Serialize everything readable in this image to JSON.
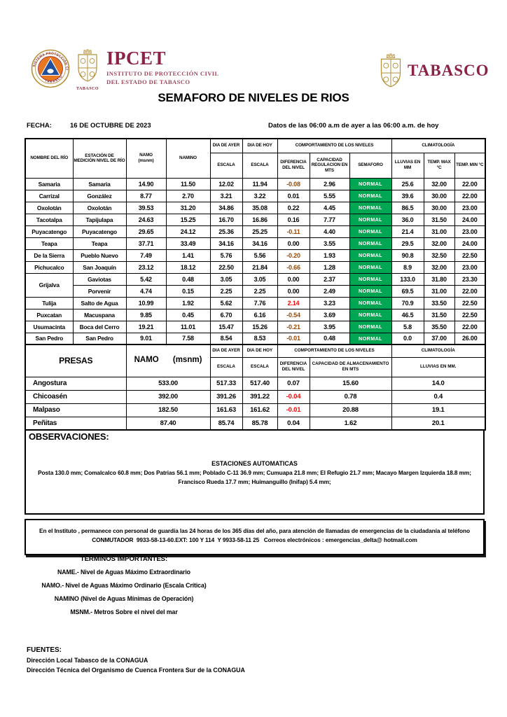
{
  "colors": {
    "semaforo_green": "#00A651",
    "negative_brown": "#974806",
    "alert_red": "#FF0000",
    "brand_maroon": "#8B2346",
    "crest_gold": "#B5913B",
    "emblem_orange": "#E87722",
    "emblem_blue": "#1F4E9C"
  },
  "header": {
    "seal_ring_top": "SISTEMA PROTECCIÓN CIVIL",
    "seal_ring_bottom": "TABASCO",
    "crest_label": "TABASCO",
    "ipcet_acronym": "IPCET",
    "ipcet_line1": "INSTITUTO DE PROTECCIÓN CIVIL",
    "ipcet_line2": "DEL ESTADO DE TABASCO",
    "tabasco_wordmark": "TABASCO",
    "title": "SEMAFORO DE NIVELES DE RIOS",
    "fecha_label": "FECHA:",
    "fecha_value": "16 DE OCTUBRE DE 2023",
    "datos_range": "Datos de las 06:00 a.m de ayer a las 06:00 a.m. de hoy"
  },
  "rivers_table": {
    "headers": {
      "nombre": "NOMBRE DEL RÍO",
      "estacion": "ESTACIÓN DE MEDICIÓN NIVEL DE RÍO",
      "namo_label": "NAMO",
      "namo_sub": "(msnm)",
      "namino": "NAMINO",
      "dia_ayer": "DIA DE AYER",
      "dia_hoy": "DIA DE HOY",
      "escala": "ESCALA",
      "comportamiento": "COMPORTAMIENTO DE LOS NIVELES",
      "diferencia": "DIFERENCIA DEL NIVEL",
      "capacidad": "CAPACIDAD REGULACION EN MTS",
      "semaforo": "SEMAFORO",
      "climatologia": "CLIMATOLOGÍA",
      "lluvias": "LLUVIAS EN MM",
      "temp_max": "TEMP. MAX °C",
      "temp_min": "TEMP. MIN °C"
    },
    "rows": [
      {
        "rio": "Samaria",
        "estacion": "Samaria",
        "namo": "14.90",
        "namino": "11.50",
        "escala_ayer": "12.02",
        "escala_hoy": "11.94",
        "diferencia": "-0.08",
        "diferencia_color": "#974806",
        "capacidad": "2.96",
        "semaforo": "NORMAL",
        "lluvias": "25.6",
        "temp_max": "32.00",
        "temp_min": "22.00"
      },
      {
        "rio": "Carrizal",
        "estacion": "González",
        "namo": "8.77",
        "namino": "2.70",
        "escala_ayer": "3.21",
        "escala_hoy": "3.22",
        "diferencia": "0.01",
        "diferencia_color": null,
        "capacidad": "5.55",
        "semaforo": "NORMAL",
        "lluvias": "39.6",
        "temp_max": "30.00",
        "temp_min": "22.00"
      },
      {
        "rio": "Oxolotán",
        "estacion": "Oxolotán",
        "namo": "39.53",
        "namino": "31.20",
        "escala_ayer": "34.86",
        "escala_hoy": "35.08",
        "diferencia": "0.22",
        "diferencia_color": null,
        "capacidad": "4.45",
        "semaforo": "NORMAL",
        "lluvias": "86.5",
        "temp_max": "30.00",
        "temp_min": "23.00"
      },
      {
        "rio": "Tacotalpa",
        "estacion": "Tapijulapa",
        "namo": "24.63",
        "namino": "15.25",
        "escala_ayer": "16.70",
        "escala_hoy": "16.86",
        "diferencia": "0.16",
        "diferencia_color": null,
        "capacidad": "7.77",
        "semaforo": "NORMAL",
        "lluvias": "36.0",
        "temp_max": "31.50",
        "temp_min": "24.00"
      },
      {
        "rio": "Puyacatengo",
        "estacion": "Puyacatengo",
        "namo": "29.65",
        "namino": "24.12",
        "escala_ayer": "25.36",
        "escala_hoy": "25.25",
        "diferencia": "-0.11",
        "diferencia_color": "#974806",
        "capacidad": "4.40",
        "semaforo": "NORMAL",
        "lluvias": "21.4",
        "temp_max": "31.00",
        "temp_min": "23.00"
      },
      {
        "rio": "Teapa",
        "estacion": "Teapa",
        "namo": "37.71",
        "namino": "33.49",
        "escala_ayer": "34.16",
        "escala_hoy": "34.16",
        "diferencia": "0.00",
        "diferencia_color": null,
        "capacidad": "3.55",
        "semaforo": "NORMAL",
        "lluvias": "29.5",
        "temp_max": "32.00",
        "temp_min": "24.00"
      },
      {
        "rio": "De la Sierra",
        "estacion": "Pueblo Nuevo",
        "namo": "7.49",
        "namino": "1.41",
        "escala_ayer": "5.76",
        "escala_hoy": "5.56",
        "diferencia": "-0.20",
        "diferencia_color": "#974806",
        "capacidad": "1.93",
        "semaforo": "NORMAL",
        "lluvias": "90.8",
        "temp_max": "32.50",
        "temp_min": "22.50"
      },
      {
        "rio": "Pichucalco",
        "estacion": "San Joaquín",
        "namo": "23.12",
        "namino": "18.12",
        "escala_ayer": "22.50",
        "escala_hoy": "21.84",
        "diferencia": "-0.66",
        "diferencia_color": "#974806",
        "capacidad": "1.28",
        "semaforo": "NORMAL",
        "lluvias": "8.9",
        "temp_max": "32.00",
        "temp_min": "23.00"
      },
      {
        "rio": "Grijalva",
        "rio_span": 2,
        "estacion": "Gaviotas",
        "namo": "5.42",
        "namino": "0.48",
        "escala_ayer": "3.05",
        "escala_hoy": "3.05",
        "diferencia": "0.00",
        "diferencia_color": null,
        "capacidad": "2.37",
        "semaforo": "NORMAL",
        "lluvias": "133.0",
        "temp_max": "31.80",
        "temp_min": "23.30"
      },
      {
        "rio": null,
        "estacion": "Porvenir",
        "namo": "4.74",
        "namino": "0.15",
        "escala_ayer": "2.25",
        "escala_hoy": "2.25",
        "diferencia": "0.00",
        "diferencia_color": null,
        "capacidad": "2.49",
        "semaforo": "NORMAL",
        "lluvias": "69.5",
        "temp_max": "31.00",
        "temp_min": "22.00"
      },
      {
        "rio": "Tulija",
        "estacion": "Salto de Agua",
        "namo": "10.99",
        "namino": "1.92",
        "escala_ayer": "5.62",
        "escala_hoy": "7.76",
        "diferencia": "2.14",
        "diferencia_color": "#FF0000",
        "capacidad": "3.23",
        "semaforo": "NORMAL",
        "lluvias": "70.9",
        "temp_max": "33.50",
        "temp_min": "22.50"
      },
      {
        "rio": "Puxcatan",
        "estacion": "Macuspana",
        "namo": "9.85",
        "namino": "0.45",
        "escala_ayer": "6.70",
        "escala_hoy": "6.16",
        "diferencia": "-0.54",
        "diferencia_color": "#974806",
        "capacidad": "3.69",
        "semaforo": "NORMAL",
        "lluvias": "46.5",
        "temp_max": "31.50",
        "temp_min": "22.50"
      },
      {
        "rio": "Usumacinta",
        "estacion": "Boca del Cerro",
        "namo": "19.21",
        "namino": "11.01",
        "escala_ayer": "15.47",
        "escala_hoy": "15.26",
        "diferencia": "-0.21",
        "diferencia_color": "#974806",
        "capacidad": "3.95",
        "semaforo": "NORMAL",
        "lluvias": "5.8",
        "temp_max": "35.50",
        "temp_min": "22.00"
      },
      {
        "rio": "San Pedro",
        "estacion": "San Pedro",
        "namo": "9.01",
        "namino": "7.58",
        "escala_ayer": "8.54",
        "escala_hoy": "8.53",
        "diferencia": "-0.01",
        "diferencia_color": "#974806",
        "capacidad": "0.48",
        "semaforo": "NORMAL",
        "lluvias": "0.0",
        "temp_max": "37.00",
        "temp_min": "26.00"
      }
    ]
  },
  "presas_table": {
    "headers": {
      "presas": "PRESAS",
      "namo_label": "NAMO",
      "namo_sub": "(msnm)",
      "dia_ayer": "DIA DE AYER",
      "dia_hoy": "DIA DE HOY",
      "escala": "ESCALA",
      "comportamiento": "COMPORTAMIENTO DE LOS NIVELES",
      "diferencia": "DIFERENCIA DEL NIVEL",
      "capacidad": "CAPACIDAD DE ALMACENAMIENTO EN MTS",
      "climatologia": "CLIMATOLOGÍA",
      "lluvias": "LLUVIAS EN MM."
    },
    "rows": [
      {
        "presa": "Angostura",
        "namo": "533.00",
        "escala_ayer": "517.33",
        "escala_hoy": "517.40",
        "diferencia": "0.07",
        "diferencia_color": null,
        "capacidad": "15.60",
        "lluvias": "14.0"
      },
      {
        "presa": "Chicoasén",
        "namo": "392.00",
        "escala_ayer": "391.26",
        "escala_hoy": "391.22",
        "diferencia": "-0.04",
        "diferencia_color": "#FF0000",
        "capacidad": "0.78",
        "lluvias": "0.4"
      },
      {
        "presa": "Malpaso",
        "namo": "182.50",
        "escala_ayer": "161.63",
        "escala_hoy": "161.62",
        "diferencia": "-0.01",
        "diferencia_color": "#FF0000",
        "capacidad": "20.88",
        "lluvias": "19.1"
      },
      {
        "presa": "Peñitas",
        "namo": "87.40",
        "escala_ayer": "85.74",
        "escala_hoy": "85.78",
        "diferencia": "0.04",
        "diferencia_color": null,
        "capacidad": "1.62",
        "lluvias": "20.1"
      }
    ]
  },
  "observaciones": {
    "title": "OBSERVACIONES:",
    "subtitle": "ESTACIONES AUTOMATICAS",
    "body": "Posta 130.0 mm; Comalcalco 60.8 mm; Dos Patrias 56.1 mm; Poblado C-11 36.9 mm; Cumuapa 21.8 mm; El Refugio 21.7 mm; Macayo Margen Izquierda 18.8 mm; Francisco Rueda 17.7 mm; Huimanguillo (Inifap) 5.4 mm;"
  },
  "instituto_note": {
    "line1": "En el Instituto , permanece con personal de guardia las 24 horas de los 365 días del año, para atención de llamadas de emergencias de la ciudadanía al teléfono",
    "line2": "CONMUTADOR  9933-58-13-60.EXT: 100 Y 114  Y 9933-58-11 25   Correos electrónicos : emergencias_delta@ hotmail.com"
  },
  "terminos": {
    "title": "TÉRMINOS IMPORTANTES:",
    "items": [
      "NAME.- Nivel de Aguas Máximo Extraordinario",
      "NAMO.- Nivel de Aguas Máximo Ordinario (Escala Crítica)",
      "NAMINO (Nivel de Aguas Mínimas de Operación)",
      "MSNM.- Metros Sobre el nivel del mar"
    ]
  },
  "fuentes": {
    "title": "FUENTES:",
    "items": [
      "Dirección Local Tabasco de la CONAGUA",
      "Dirección Técnica del Organismo de Cuenca Frontera Sur de la CONAGUA"
    ]
  }
}
